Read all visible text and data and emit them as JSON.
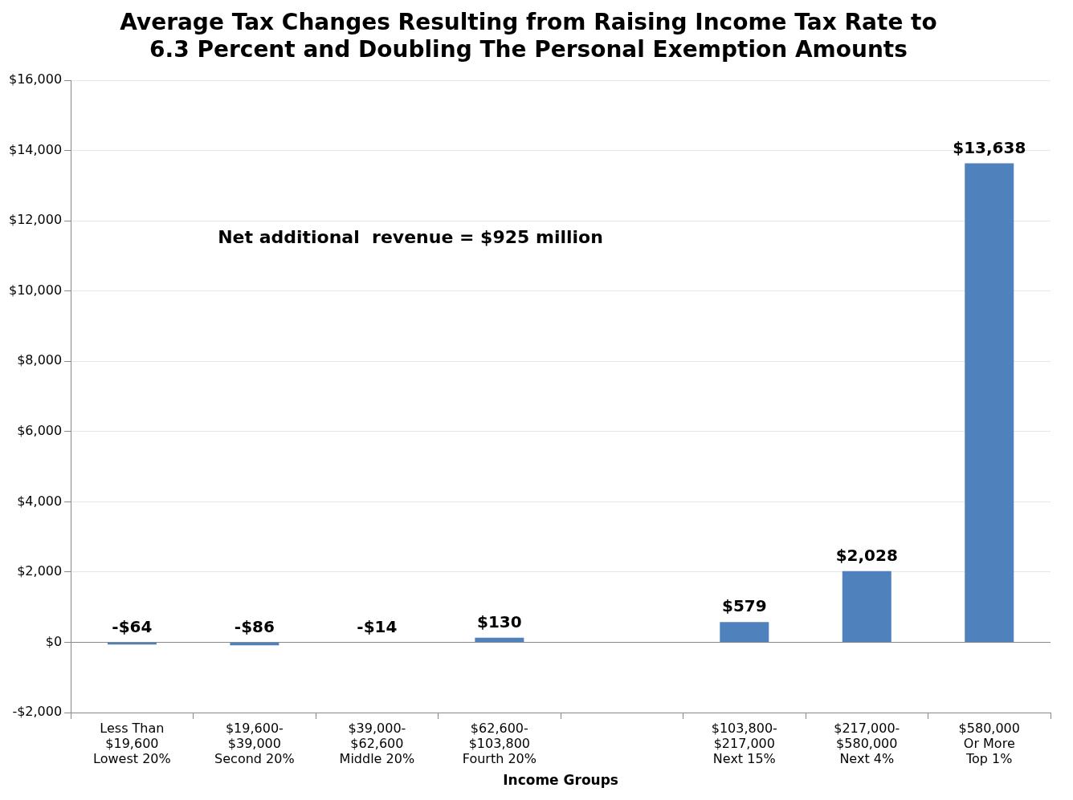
{
  "chart_data": {
    "type": "bar",
    "title": "Average Tax Changes Resulting from Raising Income Tax Rate to\n6.3 Percent and Doubling The Personal Exemption Amounts",
    "xlabel": "Income Groups",
    "categories": [
      "Less Than\n$19,600\nLowest 20%",
      "$19,600-\n$39,000\nSecond 20%",
      "$39,000-\n$62,600\nMiddle 20%",
      "$62,600-\n$103,800\nFourth 20%",
      null,
      "$103,800-\n$217,000\nNext 15%",
      "$217,000-\n$580,000\nNext 4%",
      "$580,000\nOr More\nTop 1%"
    ],
    "values": [
      -64,
      -86,
      -14,
      130,
      null,
      579,
      2028,
      13638
    ],
    "value_labels": [
      "-$64",
      "-$86",
      "-$14",
      "$130",
      null,
      "$579",
      "$2,028",
      "$13,638"
    ],
    "color": "#4f81bd",
    "ylim": [
      -2000,
      16000
    ],
    "yticks": [
      {
        "value": -2000,
        "label": "-$2,000"
      },
      {
        "value": 0,
        "label": "$0"
      },
      {
        "value": 2000,
        "label": "$2,000"
      },
      {
        "value": 4000,
        "label": "$4,000"
      },
      {
        "value": 6000,
        "label": "$6,000"
      },
      {
        "value": 8000,
        "label": "$8,000"
      },
      {
        "value": 10000,
        "label": "$10,000"
      },
      {
        "value": 12000,
        "label": "$12,000"
      },
      {
        "value": 14000,
        "label": "$14,000"
      },
      {
        "value": 16000,
        "label": "$16,000"
      }
    ],
    "annotations": [
      "Net additional  revenue = $925 million"
    ],
    "grid": "y",
    "legend": false
  }
}
